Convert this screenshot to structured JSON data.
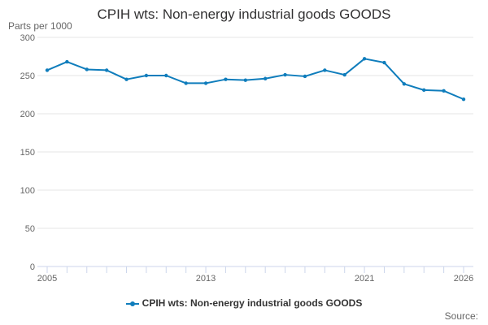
{
  "chart_data": {
    "type": "line",
    "title": "CPIH wts: Non-energy industrial goods GOODS",
    "ylabel": "Parts per 1000",
    "xlabel": "",
    "x": [
      2005,
      2006,
      2007,
      2008,
      2009,
      2010,
      2011,
      2012,
      2013,
      2014,
      2015,
      2016,
      2017,
      2018,
      2019,
      2020,
      2021,
      2022,
      2023,
      2024,
      2025,
      2026
    ],
    "xticks": [
      2005,
      2013,
      2021,
      2026
    ],
    "xlim": [
      2005,
      2026
    ],
    "ylim": [
      0,
      300
    ],
    "yticks": [
      0,
      50,
      100,
      150,
      200,
      250,
      300
    ],
    "series": [
      {
        "name": "CPIH wts: Non-energy industrial goods GOODS",
        "color": "#0f7dbc",
        "values": [
          257,
          268,
          258,
          257,
          245,
          250,
          250,
          240,
          240,
          245,
          244,
          246,
          251,
          249,
          257,
          251,
          272,
          267,
          239,
          231,
          230,
          219
        ]
      }
    ],
    "grid": true,
    "legend": "bottom-center"
  },
  "footer": {
    "source_label": "Source:"
  }
}
